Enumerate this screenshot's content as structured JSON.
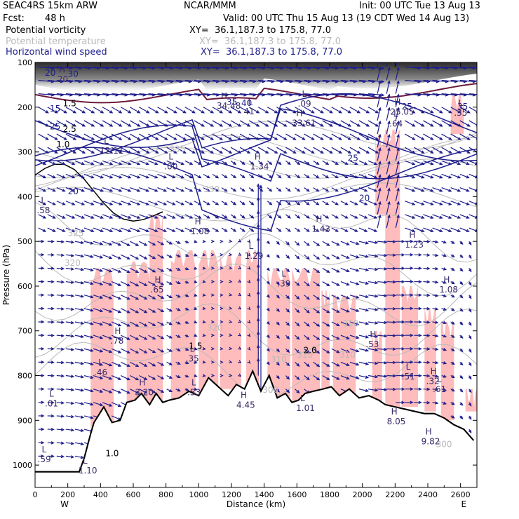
{
  "header": {
    "model": "SEAC4RS 15km ARW",
    "org": "NCAR/MMM",
    "init": "Init: 00 UTC Tue 13 Aug 13",
    "fcst_label": "Fcst:",
    "fcst_value": "48 h",
    "valid": "Valid: 00 UTC Thu 15 Aug 13 (19 CDT Wed 14 Aug 13)",
    "fields": [
      {
        "name": "Potential vorticity",
        "xy": "XY=  36.1,187.3 to 175.8, 77.0",
        "color": "#000000"
      },
      {
        "name": "Potential temperature",
        "xy": "XY=  36.1,187.3 to 175.8, 77.0",
        "color": "#b9b9b9"
      },
      {
        "name": "Horizontal wind speed",
        "xy": "XY=  36.1,187.3 to 175.8, 77.0",
        "color": "#1d1d8c"
      }
    ]
  },
  "chart_data": {
    "type": "cross-section",
    "xlabel": "Distance (km)",
    "ylabel": "Pressure (hPa)",
    "xlim": [
      0,
      2700
    ],
    "ylim": [
      1050,
      100
    ],
    "x_ticks": [
      0,
      200,
      400,
      600,
      800,
      1000,
      1200,
      1400,
      1600,
      1800,
      2000,
      2200,
      2400,
      2600
    ],
    "y_ticks": [
      100,
      200,
      300,
      400,
      500,
      600,
      700,
      800,
      900,
      1000
    ],
    "end_labels": {
      "left": "W",
      "right": "E"
    },
    "terrain": {
      "x": [
        0,
        270,
        300,
        340,
        360,
        420,
        470,
        520,
        560,
        610,
        650,
        700,
        740,
        780,
        820,
        880,
        940,
        1000,
        1060,
        1120,
        1180,
        1230,
        1280,
        1330,
        1380,
        1430,
        1480,
        1530,
        1570,
        1610,
        1650,
        1700,
        1760,
        1810,
        1860,
        1920,
        1980,
        2040,
        2100,
        2140,
        2200,
        2260,
        2320,
        2380,
        2440,
        2500,
        2560,
        2620,
        2680
      ],
      "p": [
        1015,
        1015,
        985,
        930,
        905,
        870,
        905,
        900,
        860,
        855,
        840,
        865,
        840,
        860,
        855,
        850,
        835,
        845,
        805,
        825,
        845,
        820,
        830,
        790,
        835,
        800,
        850,
        840,
        860,
        855,
        840,
        835,
        830,
        825,
        845,
        830,
        850,
        845,
        855,
        865,
        870,
        875,
        880,
        885,
        885,
        895,
        910,
        920,
        945
      ]
    },
    "theta_labels": [
      "335",
      "330",
      "325",
      "320",
      "320",
      "310",
      "310",
      "310",
      "310",
      "300",
      "300"
    ],
    "pv_labels": [
      "1.5",
      "2.5",
      "1.0",
      "1.0",
      "1.5",
      "2.0"
    ],
    "wind_labels": [
      "20",
      "15",
      "25",
      "20",
      "25",
      "20",
      "25",
      "35",
      "30",
      "35",
      "40"
    ],
    "extrema": [
      {
        "t": "H",
        "v": ".20",
        "x": 120,
        "p": 125
      },
      {
        "t": "H",
        "v": "34.48",
        "x": 1110,
        "p": 185
      },
      {
        "t": "L",
        "v": "41",
        "x": 1275,
        "p": 197
      },
      {
        "t": "L",
        "v": ".09",
        "x": 1605,
        "p": 180
      },
      {
        "t": "H",
        "v": "33.61",
        "x": 1570,
        "p": 223
      },
      {
        "t": "H",
        "v": "25.05",
        "x": 2170,
        "p": 198
      },
      {
        "t": "L",
        "v": ".64",
        "x": 2165,
        "p": 225
      },
      {
        "t": "L",
        "v": ".35",
        "x": 2560,
        "p": 200
      },
      {
        "t": "L",
        "v": "12.11",
        "x": 395,
        "p": 285
      },
      {
        "t": "L",
        "v": ".00",
        "x": 790,
        "p": 320
      },
      {
        "t": "H",
        "v": "1.34",
        "x": 1315,
        "p": 320
      },
      {
        "t": "L",
        "v": ".58",
        "x": 10,
        "p": 418
      },
      {
        "t": "H",
        "v": "1.08",
        "x": 950,
        "p": 465
      },
      {
        "t": "H",
        "v": "1.43",
        "x": 1690,
        "p": 460
      },
      {
        "t": "L",
        "v": "1.29",
        "x": 1280,
        "p": 520
      },
      {
        "t": "H",
        "v": "1.23",
        "x": 2260,
        "p": 495
      },
      {
        "t": "L",
        "v": ".39",
        "x": 1480,
        "p": 582
      },
      {
        "t": "H",
        "v": ".65",
        "x": 705,
        "p": 595
      },
      {
        "t": "H",
        "v": "1.08",
        "x": 2470,
        "p": 595
      },
      {
        "t": "H",
        "v": ".78",
        "x": 460,
        "p": 710
      },
      {
        "t": "L",
        "v": ".35",
        "x": 920,
        "p": 750
      },
      {
        "t": "H",
        "v": ".53",
        "x": 2020,
        "p": 718
      },
      {
        "t": "L",
        "v": ".46",
        "x": 360,
        "p": 780
      },
      {
        "t": "L",
        "v": ".51",
        "x": 2240,
        "p": 790
      },
      {
        "t": "H",
        "v": ".32",
        "x": 2390,
        "p": 800
      },
      {
        "t": "L",
        "v": ".61",
        "x": 2430,
        "p": 818
      },
      {
        "t": "H",
        "v": "3.20",
        "x": 610,
        "p": 825
      },
      {
        "t": "L",
        "v": ".53",
        "x": 930,
        "p": 825
      },
      {
        "t": "L",
        "v": ".01",
        "x": 60,
        "p": 850
      },
      {
        "t": "H",
        "v": "4.45",
        "x": 1230,
        "p": 853
      },
      {
        "t": "L",
        "v": "1.01",
        "x": 1595,
        "p": 860
      },
      {
        "t": "H",
        "v": "8.05",
        "x": 2150,
        "p": 890
      },
      {
        "t": "H",
        "v": "9.82",
        "x": 2360,
        "p": 935
      },
      {
        "t": "L",
        "v": ".59",
        "x": 15,
        "p": 975
      },
      {
        "t": "L",
        "v": "1.10",
        "x": 265,
        "p": 1000
      }
    ]
  },
  "colors": {
    "frame": "#000000",
    "terrain": "#000000",
    "pv_contour": "#000000",
    "pv_shade_high": "#3a3a3a",
    "pv_low_fill": "#ffbcbc",
    "theta": "#b9b9b9",
    "wind": "#1d1d8c",
    "tropopause_line": "#6e1a3c"
  }
}
